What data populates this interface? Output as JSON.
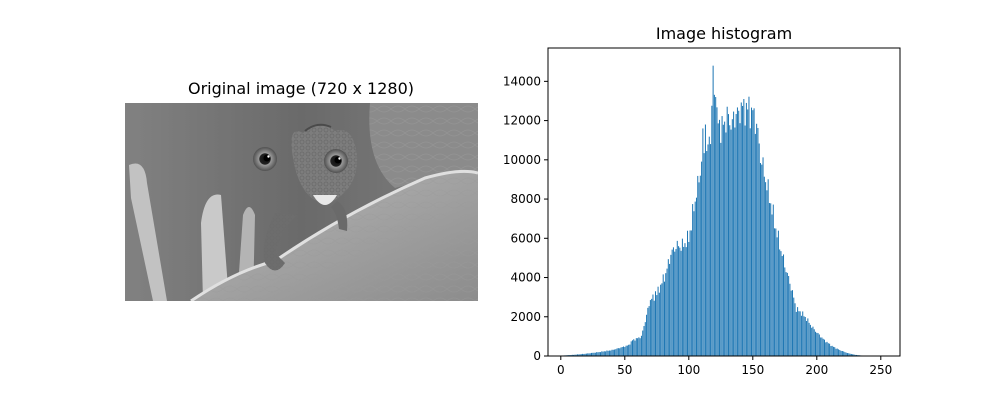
{
  "chart_data": [
    {
      "type": "image",
      "title": "Original image (720 x 1280)",
      "image_content": "grayscale photo of a small chameleon peeking over a curled leaf, plant stems in soft focus on the left"
    },
    {
      "type": "bar",
      "title": "Image histogram",
      "xlim": [
        -10,
        265
      ],
      "ylim": [
        0,
        15700
      ],
      "xticks": [
        0,
        50,
        100,
        150,
        200,
        250
      ],
      "yticks": [
        0,
        2000,
        4000,
        6000,
        8000,
        10000,
        12000,
        14000
      ],
      "grid": false,
      "bar_color": "#1f77b4",
      "anchors": [
        [
          0,
          20
        ],
        [
          10,
          60
        ],
        [
          20,
          120
        ],
        [
          30,
          200
        ],
        [
          40,
          300
        ],
        [
          48,
          450
        ],
        [
          53,
          550
        ],
        [
          56,
          800
        ],
        [
          60,
          900
        ],
        [
          63,
          1000
        ],
        [
          66,
          1800
        ],
        [
          70,
          2900
        ],
        [
          74,
          3000
        ],
        [
          78,
          3600
        ],
        [
          82,
          4200
        ],
        [
          86,
          5200
        ],
        [
          90,
          5600
        ],
        [
          95,
          5600
        ],
        [
          100,
          6000
        ],
        [
          104,
          7600
        ],
        [
          108,
          9000
        ],
        [
          111,
          10400
        ],
        [
          114,
          10200
        ],
        [
          116,
          11000
        ],
        [
          118,
          12200
        ],
        [
          120,
          13000
        ],
        [
          122,
          12000
        ],
        [
          126,
          11600
        ],
        [
          130,
          12200
        ],
        [
          134,
          11800
        ],
        [
          138,
          12600
        ],
        [
          142,
          12800
        ],
        [
          146,
          12600
        ],
        [
          150,
          12400
        ],
        [
          153,
          11800
        ],
        [
          156,
          10200
        ],
        [
          160,
          9000
        ],
        [
          164,
          7800
        ],
        [
          168,
          6500
        ],
        [
          172,
          5400
        ],
        [
          176,
          4400
        ],
        [
          180,
          3500
        ],
        [
          184,
          2400
        ],
        [
          188,
          2200
        ],
        [
          192,
          1900
        ],
        [
          196,
          1500
        ],
        [
          200,
          1200
        ],
        [
          206,
          800
        ],
        [
          212,
          500
        ],
        [
          218,
          300
        ],
        [
          224,
          150
        ],
        [
          230,
          60
        ],
        [
          236,
          20
        ],
        [
          240,
          5
        ],
        [
          255,
          0
        ]
      ],
      "spikes": [
        [
          119,
          14800
        ],
        [
          121,
          13200
        ],
        [
          111,
          11600
        ],
        [
          143,
          13100
        ],
        [
          145,
          12900
        ],
        [
          113,
          11800
        ],
        [
          139,
          12500
        ],
        [
          74,
          3300
        ],
        [
          102,
          6400
        ]
      ]
    }
  ]
}
